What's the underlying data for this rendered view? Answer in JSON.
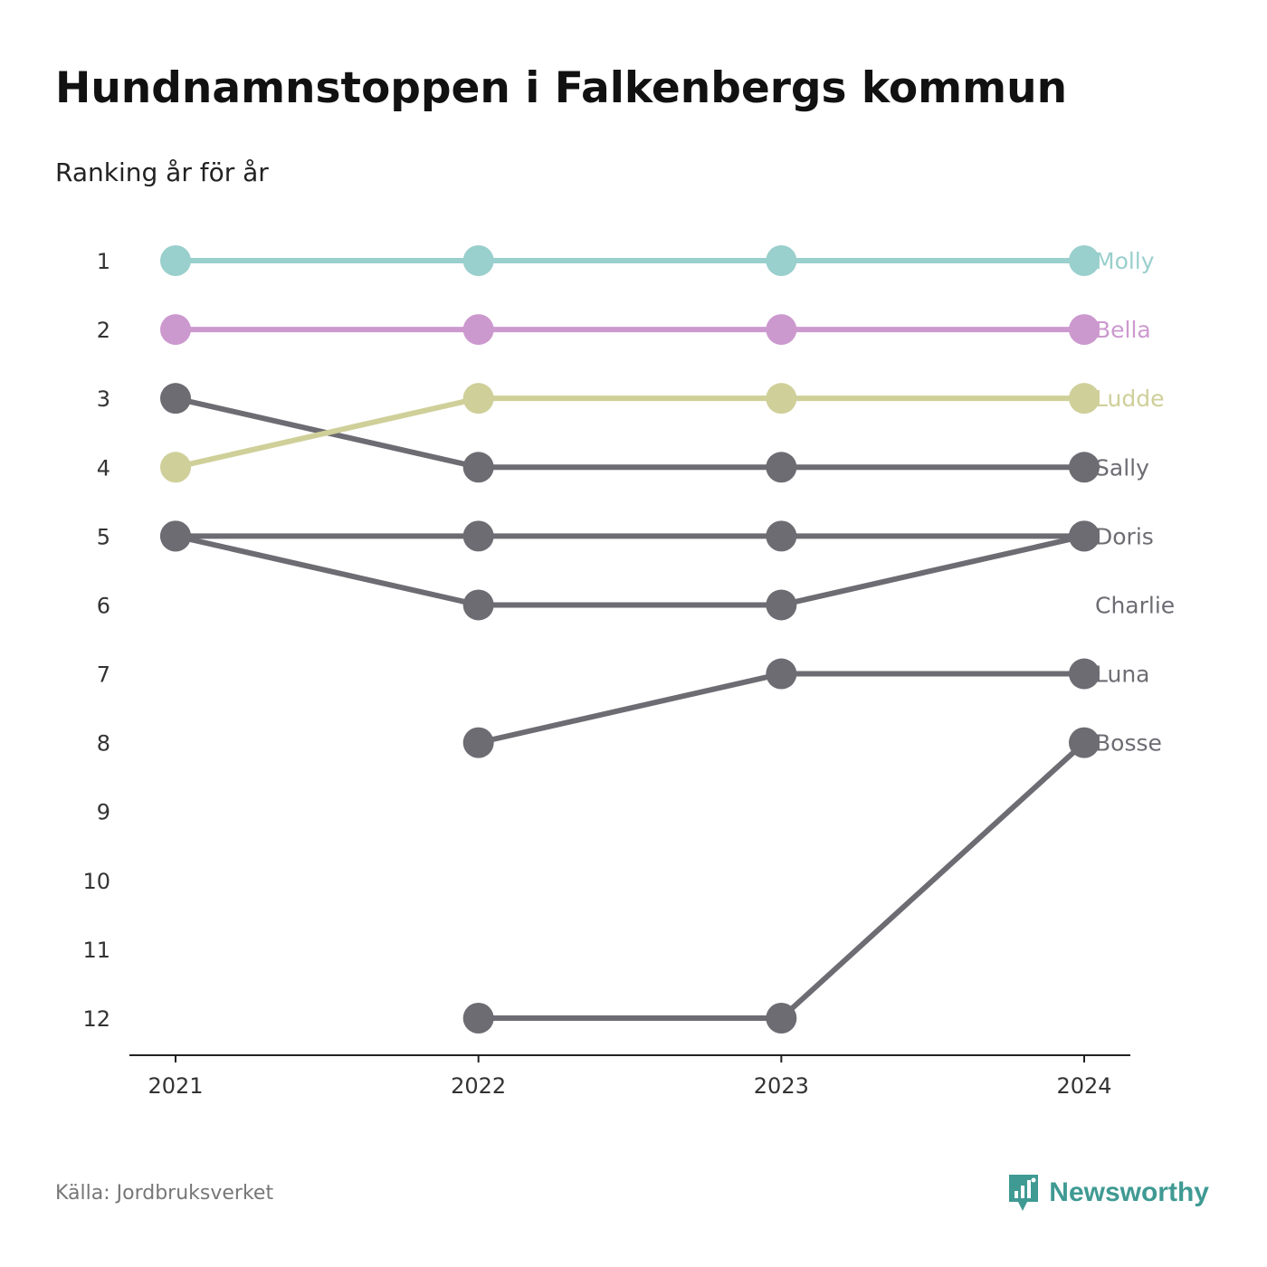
{
  "title": "Hundnamnstoppen i Falkenbergs kommun",
  "subtitle": "Ranking år för år",
  "source": "Källa: Jordbruksverket",
  "brand": {
    "name": "Newsworthy",
    "icon": "newsworthy-logo-icon",
    "color": "#3f9a93"
  },
  "chart_data": {
    "type": "line",
    "x": [
      "2021",
      "2022",
      "2023",
      "2024"
    ],
    "y_ticks": [
      1,
      2,
      3,
      4,
      5,
      6,
      7,
      8,
      9,
      10,
      11,
      12
    ],
    "ylim": [
      1,
      12
    ],
    "y_reversed": true,
    "grid": false,
    "legend": "labels at right end of lines",
    "series": [
      {
        "name": "Molly",
        "color": "#99cfcc",
        "values": [
          1,
          1,
          1,
          1
        ]
      },
      {
        "name": "Bella",
        "color": "#cc99cf",
        "values": [
          2,
          2,
          2,
          2
        ]
      },
      {
        "name": "Ludde",
        "color": "#cfcf99",
        "values": [
          4,
          3,
          3,
          3
        ]
      },
      {
        "name": "Sally",
        "color": "#6d6c73",
        "values": [
          3,
          4,
          4,
          4
        ]
      },
      {
        "name": "Doris",
        "color": "#6d6c73",
        "values": [
          5,
          5,
          5,
          5
        ]
      },
      {
        "name": "Charlie",
        "color": "#6d6c73",
        "values": [
          5,
          6,
          6,
          5
        ]
      },
      {
        "name": "Luna",
        "color": "#6d6c73",
        "values": [
          null,
          8,
          7,
          7
        ]
      },
      {
        "name": "Bosse",
        "color": "#6d6c73",
        "values": [
          null,
          12,
          12,
          8
        ]
      }
    ]
  }
}
